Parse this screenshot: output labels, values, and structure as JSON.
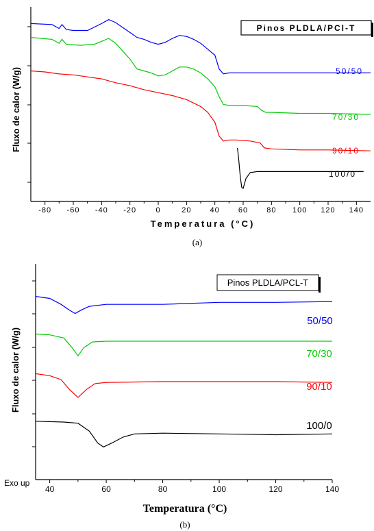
{
  "chart_data": [
    {
      "type": "line",
      "panel_caption": "(a)",
      "legend_title": "Pinos PLDLA/PCl-T",
      "xlabel": "Temperatura (°C)",
      "ylabel": "Fluxo de calor (W/g)",
      "xlim": [
        -90,
        150
      ],
      "x_ticks": [
        -80,
        -60,
        -40,
        -20,
        0,
        20,
        40,
        60,
        80,
        100,
        120,
        140
      ],
      "y_scale": "arbitrary",
      "grid": false,
      "series": [
        {
          "name": "50/50",
          "color": "#0000ff",
          "x": [
            -90,
            -75,
            -70,
            -68,
            -65,
            -60,
            -50,
            -40,
            -35,
            -30,
            -25,
            -20,
            -15,
            -10,
            -5,
            0,
            5,
            10,
            15,
            20,
            25,
            30,
            35,
            40,
            43,
            46,
            50,
            55,
            60,
            80,
            100,
            120,
            150
          ],
          "y": [
            9.5,
            9.45,
            9.25,
            9.45,
            9.2,
            9.15,
            9.15,
            9.5,
            9.7,
            9.55,
            9.3,
            9.05,
            8.8,
            8.7,
            8.55,
            8.45,
            8.55,
            8.75,
            8.9,
            8.85,
            8.7,
            8.5,
            8.2,
            7.9,
            7.2,
            6.95,
            7.0,
            7.0,
            7.0,
            7.0,
            7.0,
            7.0,
            7.0
          ]
        },
        {
          "name": "70/30",
          "color": "#00cc00",
          "x": [
            -90,
            -75,
            -70,
            -68,
            -65,
            -55,
            -45,
            -40,
            -35,
            -30,
            -25,
            -20,
            -15,
            -10,
            -5,
            0,
            5,
            10,
            15,
            20,
            25,
            30,
            35,
            40,
            43,
            46,
            50,
            60,
            70,
            73,
            76,
            80,
            100,
            120,
            150
          ],
          "y": [
            8.8,
            8.7,
            8.5,
            8.7,
            8.45,
            8.4,
            8.45,
            8.6,
            8.75,
            8.5,
            8.1,
            7.7,
            7.2,
            7.1,
            7.0,
            6.85,
            6.9,
            7.1,
            7.3,
            7.3,
            7.2,
            7.0,
            6.7,
            6.3,
            5.8,
            5.4,
            5.35,
            5.35,
            5.3,
            5.1,
            5.0,
            5.0,
            4.95,
            4.95,
            4.9
          ]
        },
        {
          "name": "90/10",
          "color": "#ff0000",
          "x": [
            -90,
            -80,
            -70,
            -60,
            -50,
            -40,
            -30,
            -20,
            -10,
            0,
            10,
            20,
            30,
            35,
            40,
            43,
            46,
            50,
            55,
            65,
            72,
            75,
            80,
            100,
            120,
            150
          ],
          "y": [
            7.1,
            7.05,
            6.95,
            6.9,
            6.8,
            6.7,
            6.5,
            6.35,
            6.15,
            6.0,
            5.85,
            5.65,
            5.3,
            5.0,
            4.5,
            3.8,
            3.55,
            3.6,
            3.6,
            3.55,
            3.45,
            3.2,
            3.15,
            3.1,
            3.1,
            3.05
          ]
        },
        {
          "name": "100/0",
          "color": "#000000",
          "x": [
            56,
            57,
            58,
            59,
            60,
            62,
            65,
            70,
            80,
            100,
            120,
            145
          ],
          "y": [
            3.2,
            2.5,
            1.7,
            1.2,
            1.15,
            1.65,
            1.95,
            2.0,
            2.0,
            2.0,
            2.0,
            2.0
          ]
        }
      ]
    },
    {
      "type": "line",
      "panel_caption": "(b)",
      "legend_title": "Pinos PLDLA/PCL-T",
      "xlabel": "Temperatura (°C)",
      "ylabel": "Fluxo de calor (W/g)",
      "corner_label": "Exo up",
      "xlim": [
        35,
        140
      ],
      "x_ticks": [
        40,
        60,
        80,
        100,
        120,
        140
      ],
      "y_scale": "arbitrary",
      "grid": false,
      "series": [
        {
          "name": "50/50",
          "color": "#0000ff",
          "x": [
            35,
            40,
            44,
            47,
            49,
            51,
            54,
            60,
            80,
            100,
            120,
            140
          ],
          "y": [
            7.85,
            7.8,
            7.65,
            7.5,
            7.42,
            7.5,
            7.6,
            7.65,
            7.65,
            7.7,
            7.7,
            7.72
          ]
        },
        {
          "name": "70/30",
          "color": "#00cc00",
          "x": [
            35,
            40,
            45,
            48,
            50,
            52,
            55,
            60,
            80,
            100,
            120,
            140
          ],
          "y": [
            6.9,
            6.88,
            6.8,
            6.55,
            6.35,
            6.55,
            6.7,
            6.72,
            6.72,
            6.72,
            6.72,
            6.72
          ]
        },
        {
          "name": "90/10",
          "color": "#ff0000",
          "x": [
            35,
            40,
            44,
            47,
            50,
            53,
            56,
            60,
            80,
            100,
            120,
            140
          ],
          "y": [
            5.9,
            5.85,
            5.75,
            5.5,
            5.3,
            5.5,
            5.65,
            5.68,
            5.7,
            5.7,
            5.7,
            5.68
          ]
        },
        {
          "name": "100/0",
          "color": "#000000",
          "x": [
            35,
            45,
            50,
            54,
            57,
            59,
            62,
            66,
            70,
            80,
            100,
            120,
            140
          ],
          "y": [
            4.7,
            4.68,
            4.65,
            4.45,
            4.15,
            4.05,
            4.15,
            4.3,
            4.38,
            4.4,
            4.38,
            4.36,
            4.38
          ]
        }
      ]
    }
  ]
}
